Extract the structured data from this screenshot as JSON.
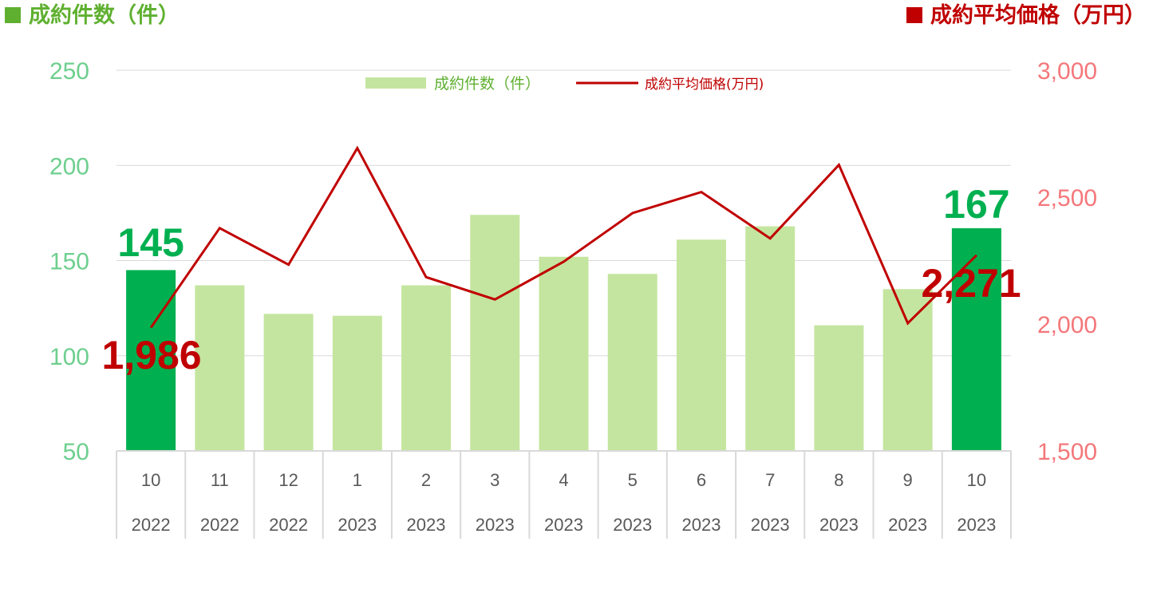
{
  "headers": {
    "left": "成約件数（件）",
    "right": "成約平均価格（万円）"
  },
  "colors": {
    "bar_light": "#c4e59f",
    "bar_highlight": "#00b050",
    "line": "#c00000",
    "left_axis_text": "#6dcf8e",
    "right_axis_text": "#f4777a",
    "left_header": "#5fb030",
    "right_header": "#c00000"
  },
  "chart_data": {
    "type": "bar+line",
    "categories": [
      {
        "month": "10",
        "year": "2022"
      },
      {
        "month": "11",
        "year": "2022"
      },
      {
        "month": "12",
        "year": "2022"
      },
      {
        "month": "1",
        "year": "2023"
      },
      {
        "month": "2",
        "year": "2023"
      },
      {
        "month": "3",
        "year": "2023"
      },
      {
        "month": "4",
        "year": "2023"
      },
      {
        "month": "5",
        "year": "2023"
      },
      {
        "month": "6",
        "year": "2023"
      },
      {
        "month": "7",
        "year": "2023"
      },
      {
        "month": "8",
        "year": "2023"
      },
      {
        "month": "9",
        "year": "2023"
      },
      {
        "month": "10",
        "year": "2023"
      }
    ],
    "series": [
      {
        "name": "成約件数（件）",
        "kind": "bar",
        "axis": "left",
        "values": [
          145,
          137,
          122,
          121,
          137,
          174,
          152,
          143,
          161,
          168,
          116,
          135,
          167
        ],
        "highlight_indices": [
          0,
          12
        ]
      },
      {
        "name": "成約平均価格(万円)",
        "kind": "line",
        "axis": "right",
        "values": [
          1986,
          2378,
          2234,
          2693,
          2185,
          2097,
          2246,
          2437,
          2520,
          2337,
          2627,
          2003,
          2271
        ]
      }
    ],
    "left_axis": {
      "min": 50,
      "max": 250,
      "ticks": [
        "50",
        "100",
        "150",
        "200",
        "250"
      ]
    },
    "right_axis": {
      "min": 1500,
      "max": 3000,
      "ticks": [
        "1,500",
        "2,000",
        "2,500",
        "3,000"
      ]
    },
    "data_labels": {
      "bar_first": "145",
      "bar_last": "167",
      "line_first": "1,986",
      "line_last": "2,271"
    },
    "legend_position": "top-center",
    "grid": "horizontal"
  }
}
